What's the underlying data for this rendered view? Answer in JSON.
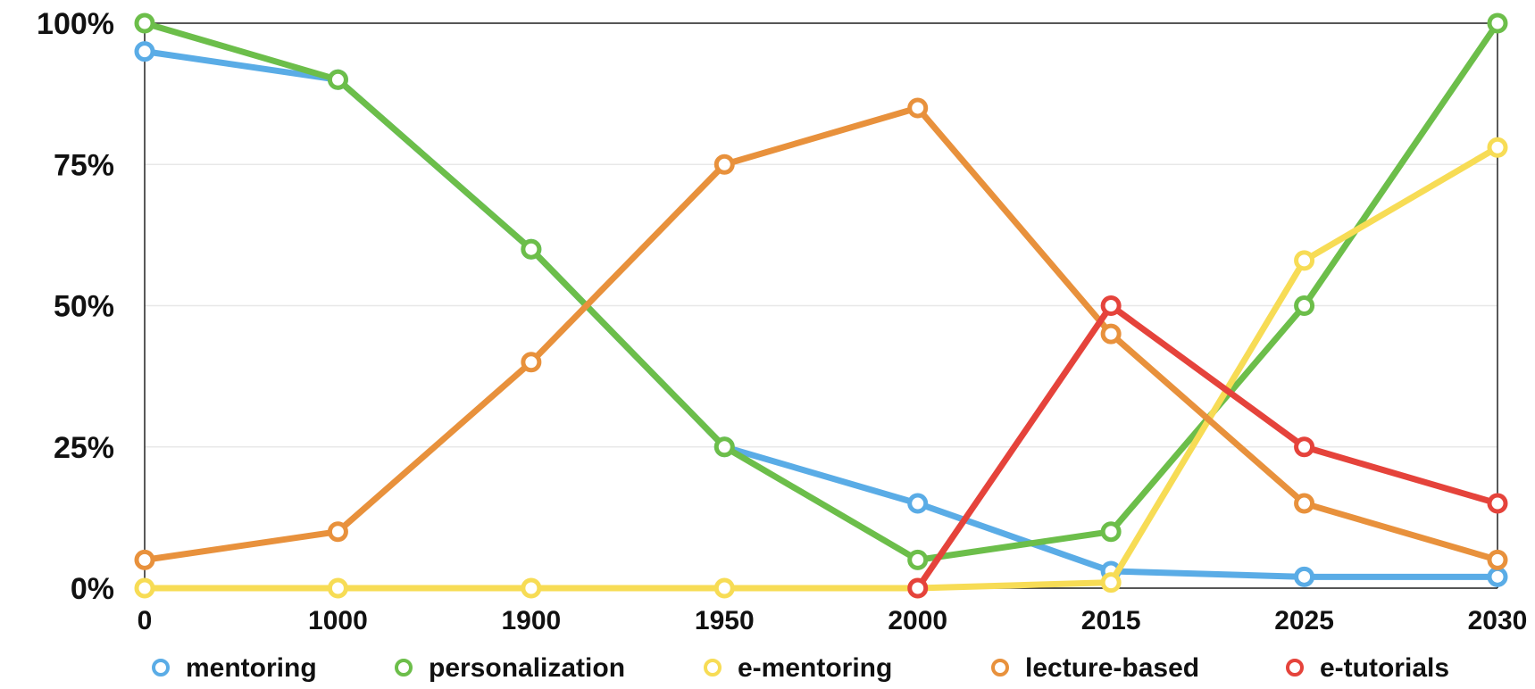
{
  "chart_data": {
    "type": "line",
    "title": "",
    "xlabel": "",
    "ylabel": "",
    "categories": [
      "0",
      "1000",
      "1900",
      "1950",
      "2000",
      "2015",
      "2025",
      "2030"
    ],
    "y_ticks": [
      "0%",
      "25%",
      "50%",
      "75%",
      "100%"
    ],
    "y_tick_values": [
      0,
      25,
      50,
      75,
      100
    ],
    "ylim": [
      0,
      100
    ],
    "grid": "horizontal",
    "legend_position": "bottom",
    "series": [
      {
        "name": "mentoring",
        "color": "#5aace6",
        "values": [
          95,
          90,
          60,
          25,
          15,
          3,
          2,
          2
        ]
      },
      {
        "name": "personalization",
        "color": "#6cbe4a",
        "values": [
          100,
          90,
          60,
          25,
          5,
          10,
          50,
          100
        ]
      },
      {
        "name": "e-mentoring",
        "color": "#f7dc55",
        "values": [
          0,
          0,
          0,
          0,
          0,
          1,
          58,
          78
        ]
      },
      {
        "name": "lecture-based",
        "color": "#e8913c",
        "values": [
          5,
          10,
          40,
          75,
          85,
          45,
          15,
          5
        ]
      },
      {
        "name": "e-tutorials",
        "color": "#e5433b",
        "values": [
          null,
          null,
          null,
          null,
          0,
          50,
          25,
          15
        ]
      }
    ]
  }
}
